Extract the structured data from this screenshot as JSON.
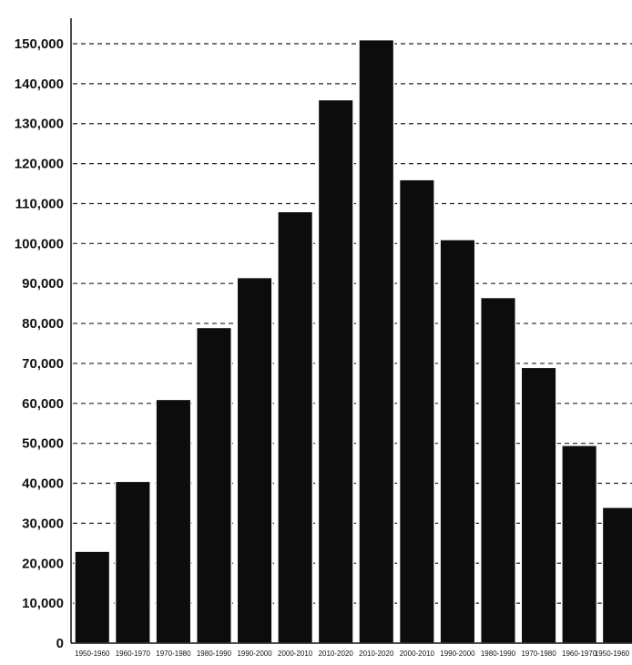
{
  "chart_data": {
    "type": "bar",
    "categories": [
      "1950-1960",
      "1960-1970",
      "1970-1980",
      "1980-1990",
      "1990-2000",
      "2000-2010",
      "2010-2020",
      "2010-2020",
      "2000-2010",
      "1990-2000",
      "1980-1990",
      "1970-1980",
      "1960-1970",
      "1950-1960"
    ],
    "values": [
      23000,
      40500,
      61000,
      79000,
      91500,
      108000,
      136000,
      151000,
      116000,
      101000,
      86500,
      69000,
      49500,
      34000
    ],
    "yticks": [
      "0",
      "10,000",
      "20,000",
      "30,000",
      "40,000",
      "50,000",
      "60,000",
      "70,000",
      "80,000",
      "90,000",
      "100,000",
      "110,000",
      "120,000",
      "130,000",
      "140,000",
      "150,000"
    ],
    "ylim": [
      0,
      150000
    ],
    "title": "",
    "xlabel": "",
    "ylabel": "",
    "grid": true,
    "colors": {
      "bar": "#0c0c0c",
      "grid": "#222222",
      "background": "#ffffff"
    }
  }
}
